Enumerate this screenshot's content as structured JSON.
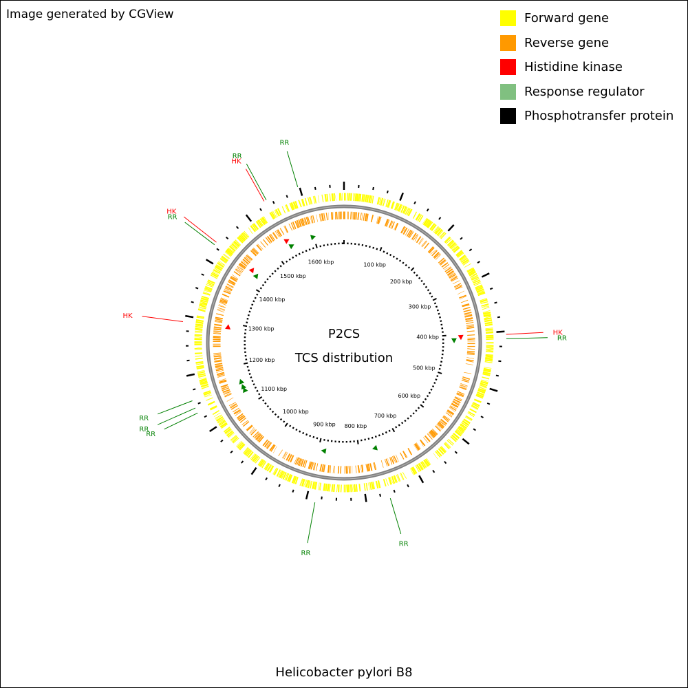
{
  "credit": "Image generated by CGView",
  "legend": [
    {
      "label": "Forward gene",
      "color": "#ffff00"
    },
    {
      "label": "Reverse gene",
      "color": "#ff9900"
    },
    {
      "label": "Histidine kinase",
      "color": "#ff0000"
    },
    {
      "label": "Response regulator",
      "color": "#80c080"
    },
    {
      "label": "Phosphotransfer protein",
      "color": "#000000"
    }
  ],
  "center": {
    "line1": "P2CS",
    "line2": "TCS distribution"
  },
  "organism": "Helicobacter pylori B8",
  "colors": {
    "backbone": "#808080",
    "hk_marker": "#ff0000",
    "rr_marker": "#008000",
    "hk_label": "#ff0000",
    "rr_label": "#008000"
  },
  "genome_kbp": 1674,
  "scale_ticks": [
    {
      "label": "100 kbp",
      "kbp": 100
    },
    {
      "label": "200 kbp",
      "kbp": 200
    },
    {
      "label": "300 kbp",
      "kbp": 300
    },
    {
      "label": "400 kbp",
      "kbp": 400
    },
    {
      "label": "500 kbp",
      "kbp": 500
    },
    {
      "label": "600 kbp",
      "kbp": 600
    },
    {
      "label": "700 kbp",
      "kbp": 700
    },
    {
      "label": "800 kbp",
      "kbp": 800
    },
    {
      "label": "900 kbp",
      "kbp": 900
    },
    {
      "label": "1000 kbp",
      "kbp": 1000
    },
    {
      "label": "1100 kbp",
      "kbp": 1100
    },
    {
      "label": "1200 kbp",
      "kbp": 1200
    },
    {
      "label": "1300 kbp",
      "kbp": 1300
    },
    {
      "label": "1400 kbp",
      "kbp": 1400
    },
    {
      "label": "1500 kbp",
      "kbp": 1500
    },
    {
      "label": "1600 kbp",
      "kbp": 1600
    }
  ],
  "annotations": [
    {
      "label": "HK",
      "type": "HK",
      "kbp": 405
    },
    {
      "label": "RR",
      "type": "RR",
      "kbp": 412
    },
    {
      "label": "RR",
      "type": "RR",
      "kbp": 760
    },
    {
      "label": "RR",
      "type": "RR",
      "kbp": 885
    },
    {
      "label": "RR",
      "type": "RR",
      "kbp": 1136
    },
    {
      "label": "RR",
      "type": "RR",
      "kbp": 1145
    },
    {
      "label": "RR",
      "type": "RR",
      "kbp": 1158
    },
    {
      "label": "HK",
      "type": "HK",
      "kbp": 1290
    },
    {
      "label": "RR",
      "type": "RR",
      "kbp": 1428
    },
    {
      "label": "HK",
      "type": "HK",
      "kbp": 1433
    },
    {
      "label": "HK",
      "type": "HK",
      "kbp": 1537
    },
    {
      "label": "RR",
      "type": "RR",
      "kbp": 1541
    },
    {
      "label": "RR",
      "type": "RR",
      "kbp": 1597
    }
  ]
}
